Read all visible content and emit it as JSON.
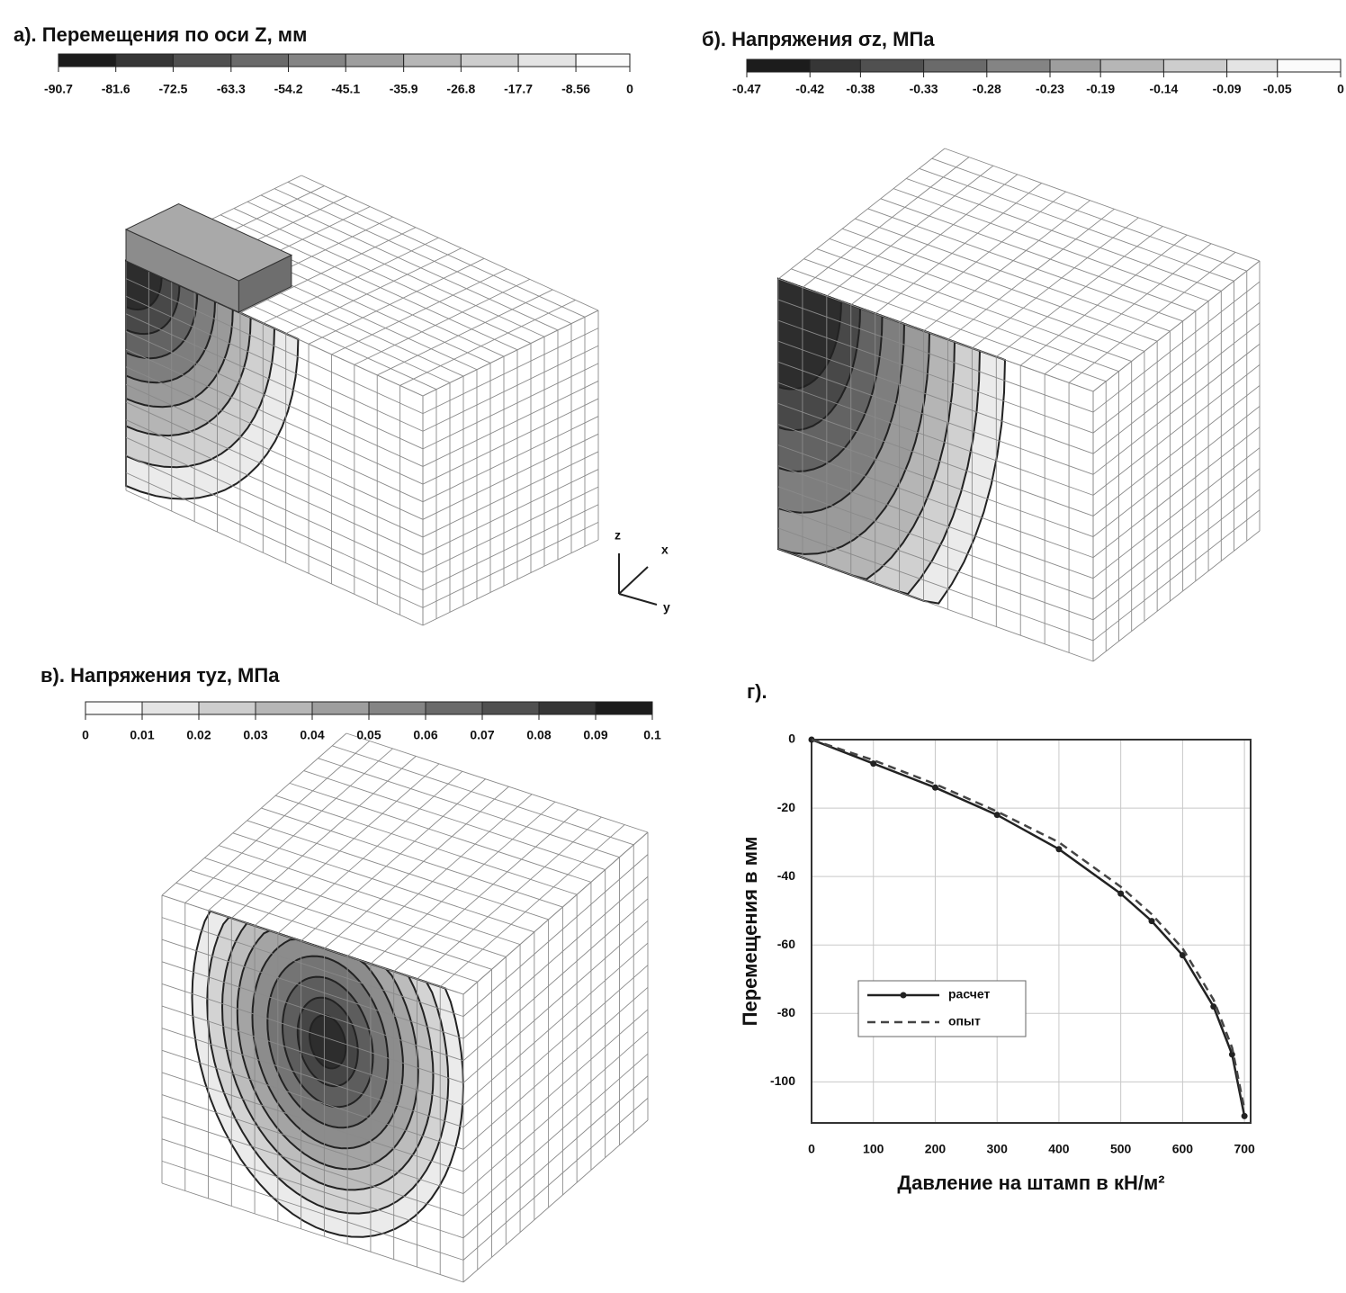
{
  "axes_icon": {
    "z": "z",
    "x": "x",
    "y": "y"
  },
  "chart_data": [
    {
      "type": "colorbar",
      "title": "а). Перемещения по оси Z, мм",
      "xlim": [
        -90.7,
        0
      ],
      "xticks": [
        -90.7,
        -81.6,
        -72.5,
        -63.3,
        -54.2,
        -45.1,
        -35.9,
        -26.8,
        -17.7,
        -8.56,
        0
      ],
      "colors": [
        "#1c1c1c",
        "#363636",
        "#505050",
        "#6a6a6a",
        "#848484",
        "#9e9e9e",
        "#b6b6b6",
        "#cdcdcd",
        "#e4e4e4",
        "#fbfbfb"
      ]
    },
    {
      "type": "colorbar",
      "title": "б). Напряжения σz, МПа",
      "xlim": [
        -0.47,
        0
      ],
      "xticks": [
        -0.47,
        -0.42,
        -0.38,
        -0.33,
        -0.28,
        -0.23,
        -0.19,
        -0.14,
        -0.09,
        -0.05,
        0
      ],
      "colors": [
        "#1c1c1c",
        "#363636",
        "#505050",
        "#6a6a6a",
        "#848484",
        "#9e9e9e",
        "#b6b6b6",
        "#cdcdcd",
        "#e4e4e4",
        "#fbfbfb"
      ]
    },
    {
      "type": "colorbar",
      "title": "в). Напряжения τyz, МПа",
      "xlim": [
        0,
        0.1
      ],
      "xticks": [
        0,
        0.01,
        0.02,
        0.03,
        0.04,
        0.05,
        0.06,
        0.07,
        0.08,
        0.09,
        0.1
      ],
      "colors": [
        "#fbfbfb",
        "#e4e4e4",
        "#cdcdcd",
        "#b6b6b6",
        "#9e9e9e",
        "#848484",
        "#6a6a6a",
        "#505050",
        "#363636",
        "#1c1c1c"
      ]
    },
    {
      "type": "line",
      "title": "г).",
      "x_label": "Давление на штамп в кН/м²",
      "y_label": "Перемещения в мм",
      "x": [
        0,
        100,
        200,
        300,
        400,
        500,
        550,
        600,
        650,
        680,
        700
      ],
      "series": [
        {
          "name": "расчет",
          "color": "#222222",
          "dash": false,
          "values": [
            0,
            -7,
            -14,
            -22,
            -32,
            -45,
            -53,
            -63,
            -78,
            -92,
            -110
          ]
        },
        {
          "name": "опыт",
          "color": "#444444",
          "dash": true,
          "values": [
            0,
            -6,
            -13,
            -21,
            -30,
            -43,
            -51,
            -61,
            -76,
            -90,
            -108
          ]
        }
      ],
      "xlim": [
        0,
        710
      ],
      "xticks": [
        0,
        100,
        200,
        300,
        400,
        500,
        600,
        700
      ],
      "ylim": [
        -112,
        0
      ],
      "yticks": [
        0,
        -20,
        -40,
        -60,
        -80,
        -100
      ],
      "grid": true,
      "legend": "lower left"
    }
  ]
}
